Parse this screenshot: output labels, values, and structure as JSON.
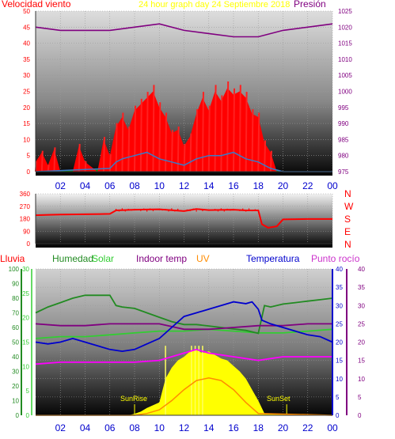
{
  "chart_data": [
    {
      "type": "line",
      "title": "24 hour graph day   24 Septiembre 2018",
      "x_ticks": [
        "02",
        "04",
        "06",
        "08",
        "10",
        "12",
        "14",
        "16",
        "18",
        "20",
        "22",
        "00"
      ],
      "x_range_hours": [
        0,
        24
      ],
      "y_left": {
        "label": "Velocidad viento",
        "ticks": [
          "0",
          "5",
          "10",
          "15",
          "20",
          "25",
          "30",
          "35",
          "40",
          "45",
          "50"
        ],
        "range": [
          0,
          50
        ]
      },
      "y_right": {
        "label": "Presión",
        "ticks": [
          "975",
          "980",
          "985",
          "990",
          "995",
          "1000",
          "1005",
          "1010",
          "1015",
          "1020",
          "1025"
        ],
        "range": [
          975,
          1025
        ]
      },
      "series": [
        {
          "name": "Presión",
          "axis": "right",
          "color": "#800080",
          "x": [
            0,
            2,
            4,
            6,
            8,
            10,
            12,
            14,
            16,
            18,
            20,
            22,
            24
          ],
          "y": [
            1020,
            1019,
            1019,
            1019,
            1020,
            1021,
            1019,
            1018,
            1017,
            1017,
            1019,
            1020,
            1021
          ]
        },
        {
          "name": "wind-gust",
          "axis": "left",
          "color": "#ff0000",
          "x": [
            0,
            0.5,
            1,
            1.5,
            2,
            3,
            3.5,
            4,
            5,
            5.5,
            6,
            6.5,
            7,
            7.5,
            8,
            8.5,
            9,
            9.5,
            10,
            10.5,
            11,
            11.5,
            12,
            12.5,
            13,
            13.5,
            14,
            14.5,
            15,
            15.5,
            16,
            16.5,
            17,
            17.5,
            18,
            18.5,
            19,
            19.5,
            20,
            22,
            24
          ],
          "y": [
            3,
            6,
            2,
            7,
            0,
            0,
            8,
            3,
            0,
            10,
            5,
            14,
            17,
            13,
            19,
            21,
            23,
            25,
            20,
            17,
            12,
            13,
            8,
            11,
            18,
            23,
            19,
            25,
            22,
            26,
            24,
            25,
            23,
            18,
            17,
            9,
            6,
            0,
            0,
            0,
            0
          ]
        },
        {
          "name": "wind-average",
          "axis": "left",
          "color": "#3a7ac8",
          "x": [
            0,
            6,
            6.5,
            7,
            8,
            9,
            10,
            11,
            12,
            13,
            14,
            15,
            16,
            17,
            18,
            18.5,
            19,
            20,
            24
          ],
          "y": [
            0,
            1,
            3,
            4,
            5,
            6,
            4,
            3,
            2,
            4,
            5,
            5,
            6,
            4,
            3,
            2,
            1,
            0,
            0
          ]
        }
      ]
    },
    {
      "type": "line",
      "y_left": {
        "ticks": [
          "0",
          "90",
          "180",
          "270",
          "360"
        ],
        "range": [
          0,
          360
        ]
      },
      "y_right_labels": [
        "N",
        "W",
        "S",
        "E",
        "N"
      ],
      "series": [
        {
          "name": "wind-direction",
          "color": "#ff0000",
          "x": [
            0,
            1,
            2,
            4,
            6,
            6.5,
            8,
            10,
            12,
            13,
            14,
            16,
            17,
            18,
            18.3,
            18.8,
            19.5,
            20,
            22,
            24
          ],
          "y": [
            205,
            208,
            210,
            212,
            215,
            240,
            245,
            248,
            235,
            250,
            242,
            245,
            240,
            240,
            140,
            115,
            125,
            175,
            178,
            178
          ]
        }
      ]
    },
    {
      "type": "line",
      "legend": [
        "Lluvia",
        "Humedad",
        "Solar",
        "Indoor temp",
        "UV",
        "Temperatura",
        "Punto rocío"
      ],
      "x_ticks": [
        "02",
        "04",
        "06",
        "08",
        "10",
        "12",
        "14",
        "16",
        "18",
        "20",
        "22",
        "00"
      ],
      "y_axes": {
        "Lluvia": {
          "ticks": [
            "0",
            "10",
            "20",
            "30",
            "40",
            "50",
            "60",
            "70",
            "80",
            "90",
            "100"
          ],
          "range": [
            0,
            100
          ]
        },
        "Solar": {
          "ticks": [
            "0",
            "5",
            "10",
            "15",
            "20",
            "25",
            "30"
          ],
          "range": [
            0,
            30
          ]
        },
        "Temperatura": {
          "ticks": [
            "0",
            "5",
            "10",
            "15",
            "20",
            "25",
            "30",
            "35",
            "40"
          ],
          "range": [
            0,
            40
          ]
        },
        "Indoor temp": {
          "ticks": [
            "0",
            "5",
            "10",
            "15",
            "20",
            "25",
            "30",
            "35",
            "40"
          ],
          "range": [
            0,
            40
          ]
        }
      },
      "annotations": [
        {
          "text": "SunRise",
          "x": 8.0
        },
        {
          "text": "SunSet",
          "x": 20.3
        }
      ],
      "series": [
        {
          "name": "Humedad",
          "color": "#228b22",
          "x": [
            0,
            1,
            2,
            3,
            4,
            5,
            6,
            6.5,
            7,
            8,
            9,
            10,
            11,
            12,
            13,
            14,
            15,
            16,
            17,
            18,
            18.5,
            19,
            20,
            21,
            22,
            23,
            24
          ],
          "y": [
            70,
            74,
            77,
            80,
            82,
            82,
            82,
            75,
            74,
            73,
            70,
            67,
            64,
            62,
            62,
            61,
            60,
            59,
            58,
            56,
            75,
            74,
            76,
            77,
            78,
            79,
            80
          ]
        },
        {
          "name": "Temperatura",
          "color": "#0000cd",
          "x": [
            0,
            1,
            2,
            3,
            4,
            5,
            6,
            7,
            8,
            9,
            10,
            11,
            12,
            13,
            14,
            15,
            16,
            17,
            17.5,
            18,
            18.3,
            19,
            20,
            21,
            22,
            23,
            24
          ],
          "y": [
            20,
            19.5,
            20,
            21,
            20,
            19,
            18,
            17.5,
            18,
            19.5,
            21,
            24,
            27,
            28,
            29,
            30,
            31,
            30.5,
            31,
            29,
            26,
            25,
            24,
            23,
            22,
            21.5,
            20
          ]
        },
        {
          "name": "Indoor temp",
          "color": "#800080",
          "x": [
            0,
            2,
            4,
            6,
            8,
            10,
            12,
            14,
            16,
            18,
            20,
            22,
            24
          ],
          "y": [
            25,
            24.5,
            24.5,
            25,
            25,
            25,
            23.5,
            23.5,
            24,
            24.5,
            24.5,
            25,
            25
          ]
        },
        {
          "name": "Punto rocío",
          "color": "#ff00ff",
          "x": [
            0,
            2,
            4,
            6,
            8,
            10,
            11,
            12,
            13,
            14,
            15,
            16,
            17,
            18,
            19,
            20,
            22,
            24
          ],
          "y": [
            14,
            14.5,
            14.5,
            14.5,
            14.5,
            15,
            16,
            17,
            18,
            17,
            16.5,
            16,
            15.5,
            15,
            15.5,
            16,
            16,
            16
          ]
        },
        {
          "name": "green-mid",
          "color": "#32cd32",
          "x": [
            0,
            2,
            4,
            6,
            8,
            10,
            12,
            14,
            16,
            18,
            20,
            22,
            24
          ],
          "y": [
            21,
            21.5,
            21.5,
            22,
            22.5,
            23,
            23,
            23.5,
            23,
            22.5,
            22.5,
            23,
            23.5
          ]
        },
        {
          "name": "Solar",
          "color": "#ffff00",
          "type": "area",
          "x": [
            0,
            7.5,
            8,
            8.5,
            9,
            10,
            10.5,
            11,
            11.5,
            12,
            12.5,
            13,
            13.5,
            14,
            14.5,
            15,
            15.5,
            16,
            16.5,
            17,
            17.5,
            18,
            18.5,
            24
          ],
          "y": [
            0,
            0,
            0.4,
            1,
            2,
            3.5,
            10,
            13,
            15,
            16,
            17.5,
            17.8,
            17,
            17.5,
            16.5,
            15.5,
            15,
            13.5,
            12,
            10,
            7,
            4,
            0.5,
            0
          ]
        },
        {
          "name": "UV",
          "color": "#ff8c00",
          "x": [
            0,
            8,
            9,
            10,
            11,
            12,
            13,
            14,
            15,
            16,
            17,
            18,
            24
          ],
          "y": [
            0,
            0,
            0.5,
            1.5,
            4,
            7,
            9.5,
            10.2,
            9.5,
            7,
            3.5,
            0.5,
            0
          ]
        }
      ]
    }
  ]
}
